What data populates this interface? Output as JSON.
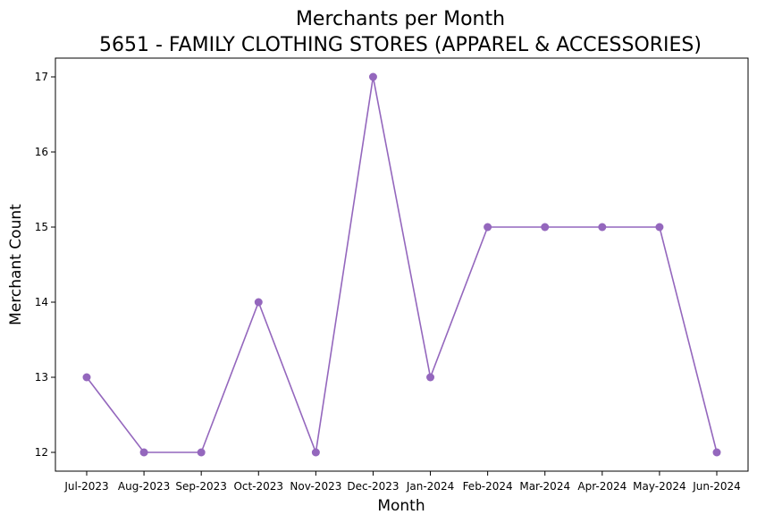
{
  "chart_data": {
    "type": "line",
    "title": "Merchants per Month",
    "subtitle": "5651 - FAMILY CLOTHING STORES (APPAREL & ACCESSORIES)",
    "xlabel": "Month",
    "ylabel": "Merchant Count",
    "categories": [
      "Jul-2023",
      "Aug-2023",
      "Sep-2023",
      "Oct-2023",
      "Nov-2023",
      "Dec-2023",
      "Jan-2024",
      "Feb-2024",
      "Mar-2024",
      "Apr-2024",
      "May-2024",
      "Jun-2024"
    ],
    "series": [
      {
        "name": "Merchant Count",
        "values": [
          13,
          12,
          12,
          14,
          12,
          17,
          13,
          15,
          15,
          15,
          15,
          12
        ],
        "color": "#9467bd",
        "marker": "circle"
      }
    ],
    "yticks": [
      "12",
      "13",
      "14",
      "15",
      "16",
      "17"
    ],
    "ylim": [
      11.75,
      17.25
    ],
    "grid": false,
    "legend": "none"
  }
}
